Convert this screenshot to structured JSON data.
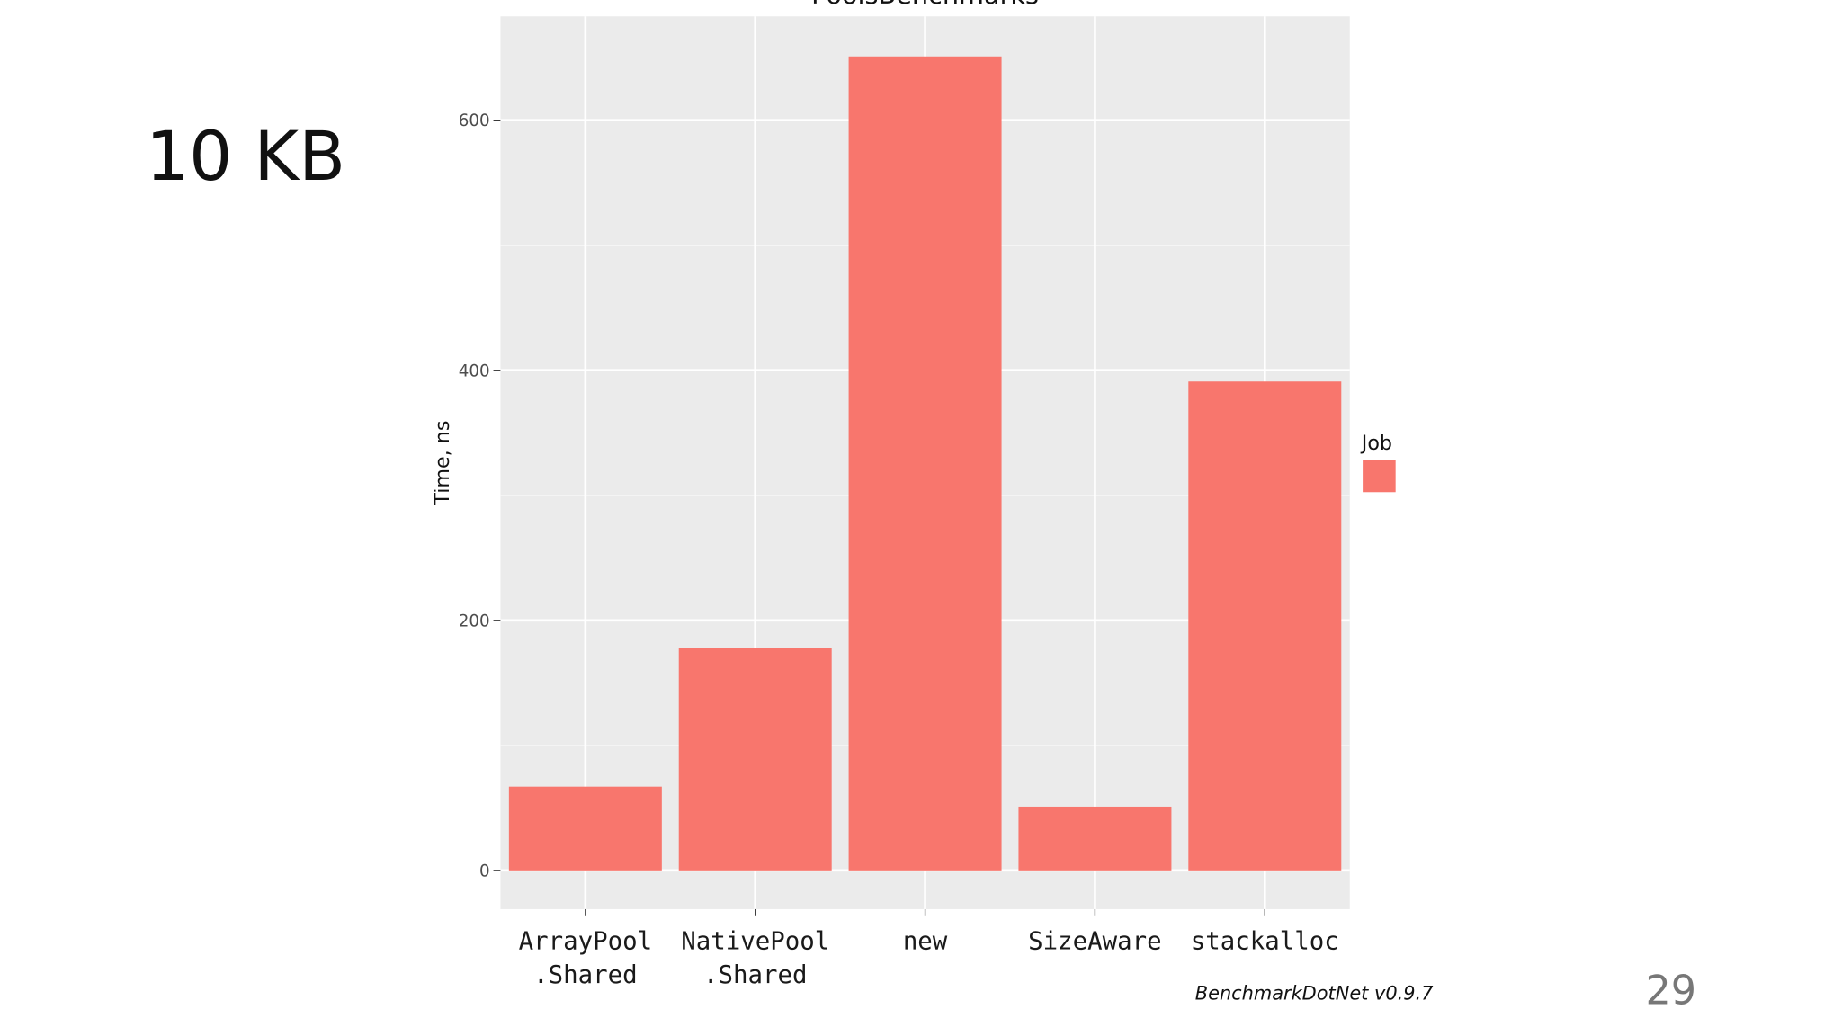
{
  "slide_title": "10 KB",
  "page_number": "29",
  "chart_data": {
    "type": "bar",
    "title": "PoolsBenchmarks",
    "y_label": "Time, ns",
    "categories": [
      "ArrayPool\n.Shared",
      "NativePool\n.Shared",
      "new",
      "SizeAware",
      "stackalloc"
    ],
    "values": [
      67,
      178,
      651,
      51,
      391
    ],
    "color": "#f8766d",
    "ylim": [
      -31,
      683
    ],
    "yticks": [
      0,
      200,
      400,
      600
    ],
    "minor_yticks": [
      100,
      300,
      500
    ],
    "grid": true,
    "legend_title": "Job",
    "caption": "BenchmarkDotNet v0.9.7"
  }
}
